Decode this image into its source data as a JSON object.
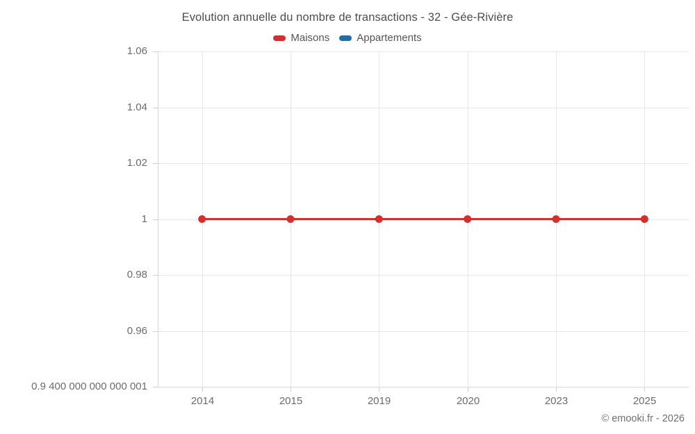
{
  "title": "Evolution annuelle du nombre de transactions - 32 - Gée-Rivière",
  "legend": [
    {
      "label": "Maisons",
      "color": "#d32f2f"
    },
    {
      "label": "Appartements",
      "color": "#1f6fa5"
    }
  ],
  "copyright": "© emooki.fr - 2026",
  "chart_data": {
    "type": "line",
    "title": "Evolution annuelle du nombre de transactions - 32 - Gée-Rivière",
    "categories": [
      "2014",
      "2015",
      "2019",
      "2020",
      "2023",
      "2025"
    ],
    "series": [
      {
        "name": "Maisons",
        "color": "#d32f2f",
        "values": [
          1,
          1,
          1,
          1,
          1,
          1
        ],
        "visible": true
      },
      {
        "name": "Appartements",
        "color": "#1f6fa5",
        "values": [],
        "visible": false
      }
    ],
    "xlabel": "",
    "ylabel": "",
    "ylim": [
      0.9400000000000001,
      1.06
    ],
    "y_ticks": [
      {
        "label": "1.06",
        "value": 1.06
      },
      {
        "label": "1.04",
        "value": 1.04
      },
      {
        "label": "1.02",
        "value": 1.02
      },
      {
        "label": "1",
        "value": 1.0
      },
      {
        "label": "0.98",
        "value": 0.98
      },
      {
        "label": "0.96",
        "value": 0.96
      },
      {
        "label": "0.9 400 000 000 000 001",
        "value": 0.9400000000000001
      }
    ],
    "grid": true,
    "legend_position": "top"
  }
}
